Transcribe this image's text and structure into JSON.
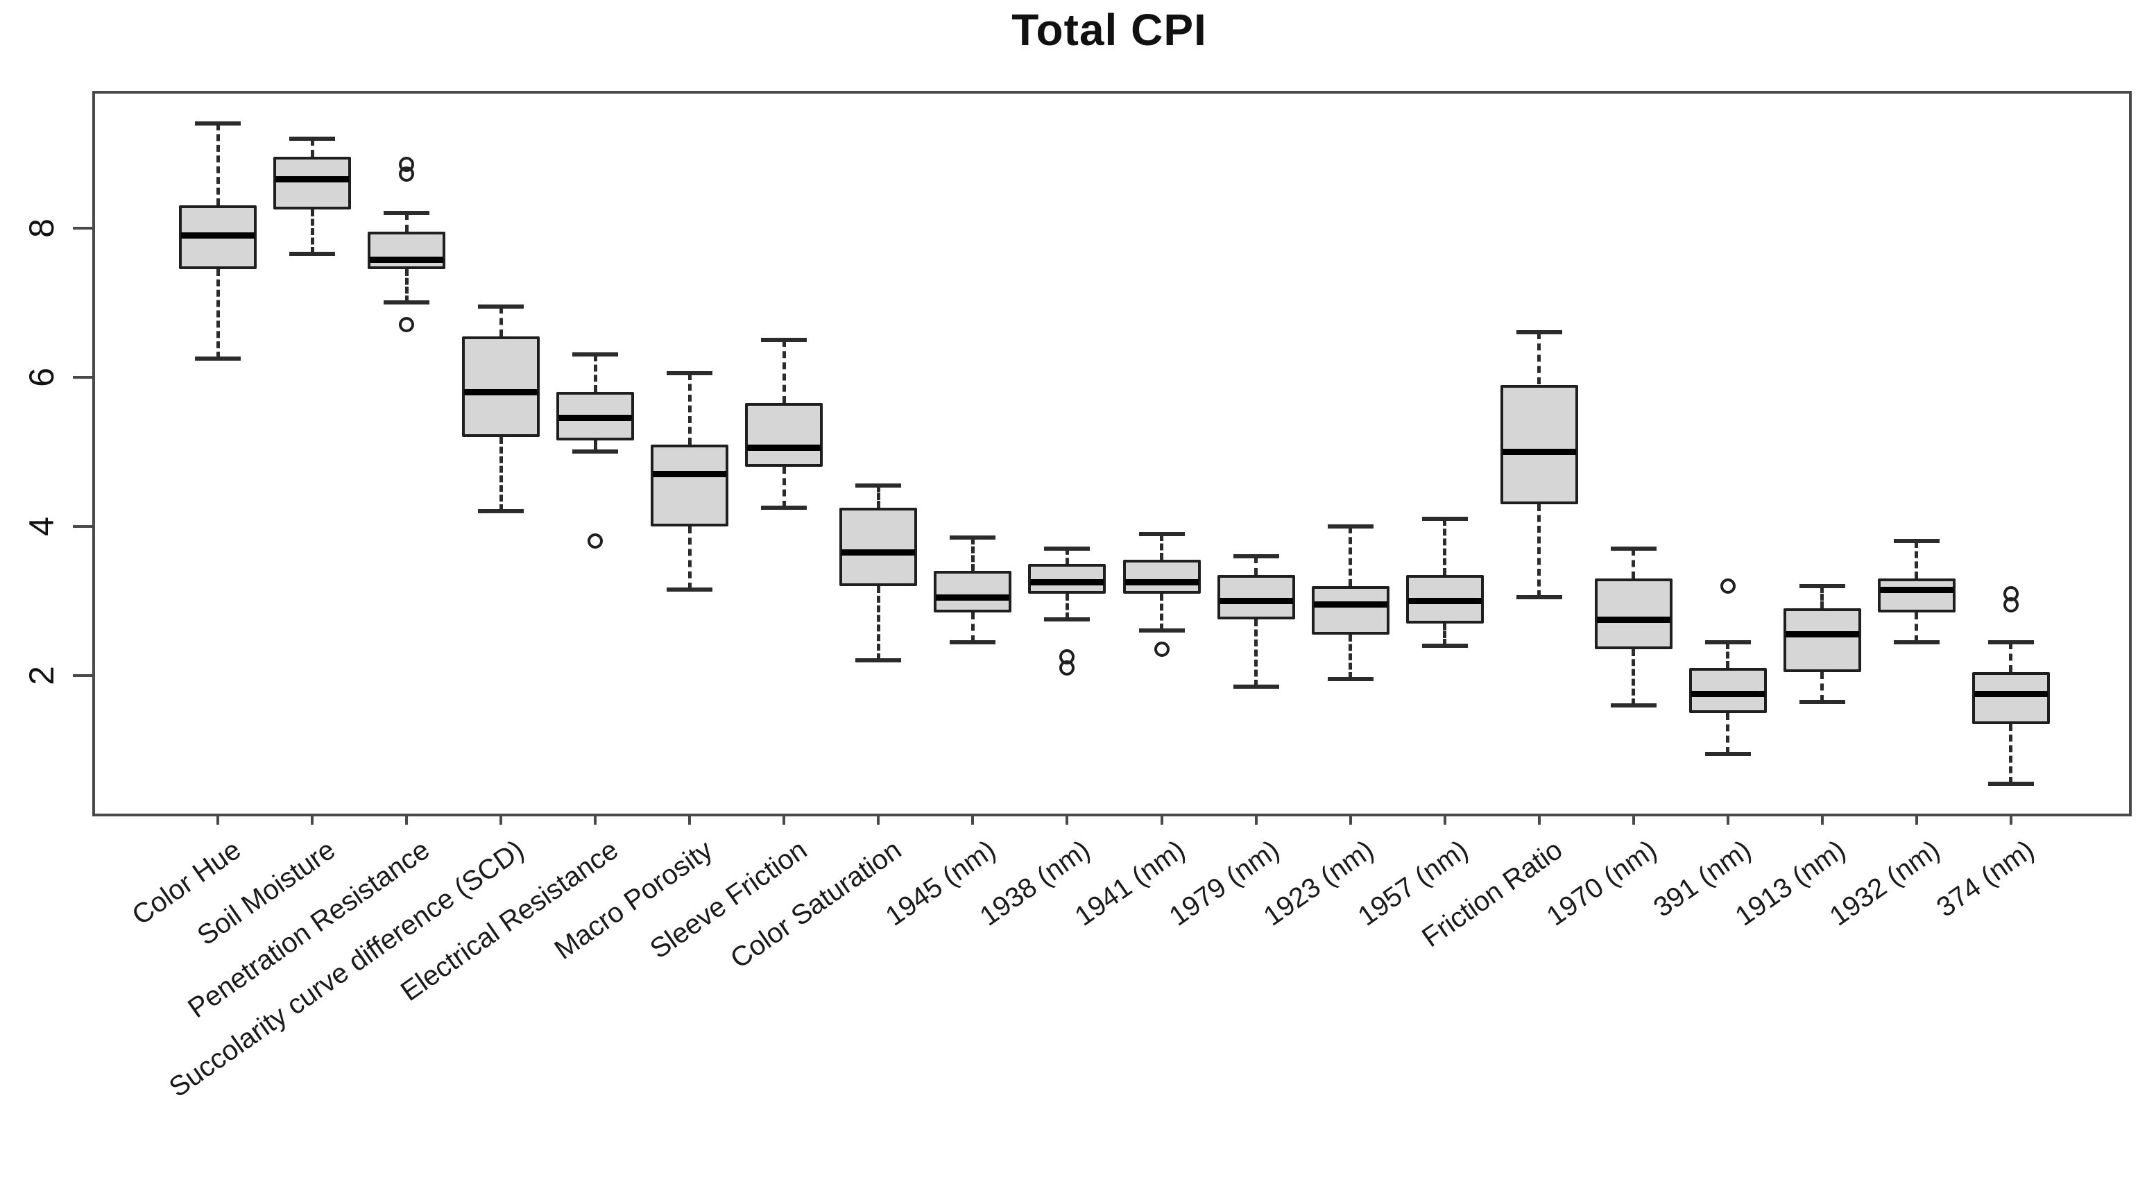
{
  "title": "Total CPI",
  "chart_data": {
    "type": "boxplot",
    "title": "Total CPI",
    "xlabel": "",
    "ylabel": "",
    "ylim": [
      0.15,
      9.8
    ],
    "yticks": [
      2,
      4,
      6,
      8
    ],
    "grid": false,
    "legend": "none",
    "box_fill_color": "#d6d6d6",
    "box_border_color": "#1f1f1f",
    "categories": [
      "Color Hue",
      "Soil Moisture",
      "Penetration Resistance",
      "Succolarity curve difference (SCD)",
      "Electrical Resistance",
      "Macro Porosity",
      "Sleeve Friction",
      "Color Saturation",
      "1945 (nm)",
      "1938 (nm)",
      "1941 (nm)",
      "1979 (nm)",
      "1923 (nm)",
      "1957 (nm)",
      "Friction Ratio",
      "1970 (nm)",
      "391 (nm)",
      "1913 (nm)",
      "1932 (nm)",
      "374 (nm)"
    ],
    "boxes": [
      {
        "label": "Color Hue",
        "whislo": 6.25,
        "q1": 7.45,
        "med": 7.9,
        "q3": 8.3,
        "whishi": 9.4,
        "outliers": []
      },
      {
        "label": "Soil Moisture",
        "whislo": 7.65,
        "q1": 8.25,
        "med": 8.65,
        "q3": 8.95,
        "whishi": 9.2,
        "outliers": []
      },
      {
        "label": "Penetration Resistance",
        "whislo": 7.0,
        "q1": 7.45,
        "med": 7.57,
        "q3": 7.95,
        "whishi": 8.2,
        "outliers": [
          8.85,
          8.72,
          6.7
        ]
      },
      {
        "label": "Succolarity curve difference (SCD)",
        "whislo": 4.2,
        "q1": 5.2,
        "med": 5.8,
        "q3": 6.55,
        "whishi": 6.95,
        "outliers": []
      },
      {
        "label": "Electrical Resistance",
        "whislo": 5.0,
        "q1": 5.15,
        "med": 5.45,
        "q3": 5.8,
        "whishi": 6.3,
        "outliers": [
          3.8
        ]
      },
      {
        "label": "Macro Porosity",
        "whislo": 3.15,
        "q1": 4.0,
        "med": 4.7,
        "q3": 5.1,
        "whishi": 6.05,
        "outliers": []
      },
      {
        "label": "Sleeve Friction",
        "whislo": 4.25,
        "q1": 4.8,
        "med": 5.05,
        "q3": 5.65,
        "whishi": 6.5,
        "outliers": []
      },
      {
        "label": "Color Saturation",
        "whislo": 2.2,
        "q1": 3.2,
        "med": 3.65,
        "q3": 4.25,
        "whishi": 4.55,
        "outliers": []
      },
      {
        "label": "1945 (nm)",
        "whislo": 2.45,
        "q1": 2.85,
        "med": 3.05,
        "q3": 3.4,
        "whishi": 3.85,
        "outliers": []
      },
      {
        "label": "1938 (nm)",
        "whislo": 2.75,
        "q1": 3.1,
        "med": 3.25,
        "q3": 3.5,
        "whishi": 3.7,
        "outliers": [
          2.25,
          2.1
        ]
      },
      {
        "label": "1941 (nm)",
        "whislo": 2.6,
        "q1": 3.1,
        "med": 3.25,
        "q3": 3.55,
        "whishi": 3.9,
        "outliers": [
          2.35
        ]
      },
      {
        "label": "1979 (nm)",
        "whislo": 1.85,
        "q1": 2.75,
        "med": 3.0,
        "q3": 3.35,
        "whishi": 3.6,
        "outliers": []
      },
      {
        "label": "1923 (nm)",
        "whislo": 1.95,
        "q1": 2.55,
        "med": 2.95,
        "q3": 3.2,
        "whishi": 4.0,
        "outliers": []
      },
      {
        "label": "1957 (nm)",
        "whislo": 2.4,
        "q1": 2.7,
        "med": 3.0,
        "q3": 3.35,
        "whishi": 4.1,
        "outliers": []
      },
      {
        "label": "Friction Ratio",
        "whislo": 3.05,
        "q1": 4.3,
        "med": 5.0,
        "q3": 5.9,
        "whishi": 6.6,
        "outliers": []
      },
      {
        "label": "1970 (nm)",
        "whislo": 1.6,
        "q1": 2.35,
        "med": 2.75,
        "q3": 3.3,
        "whishi": 3.7,
        "outliers": []
      },
      {
        "label": "391 (nm)",
        "whislo": 0.95,
        "q1": 1.5,
        "med": 1.75,
        "q3": 2.1,
        "whishi": 2.45,
        "outliers": [
          3.2
        ]
      },
      {
        "label": "1913 (nm)",
        "whislo": 1.65,
        "q1": 2.05,
        "med": 2.55,
        "q3": 2.9,
        "whishi": 3.2,
        "outliers": []
      },
      {
        "label": "1932 (nm)",
        "whislo": 2.45,
        "q1": 2.85,
        "med": 3.15,
        "q3": 3.3,
        "whishi": 3.8,
        "outliers": []
      },
      {
        "label": "374 (nm)",
        "whislo": 0.55,
        "q1": 1.35,
        "med": 1.75,
        "q3": 2.05,
        "whishi": 2.45,
        "outliers": [
          2.95,
          3.1
        ]
      }
    ]
  }
}
